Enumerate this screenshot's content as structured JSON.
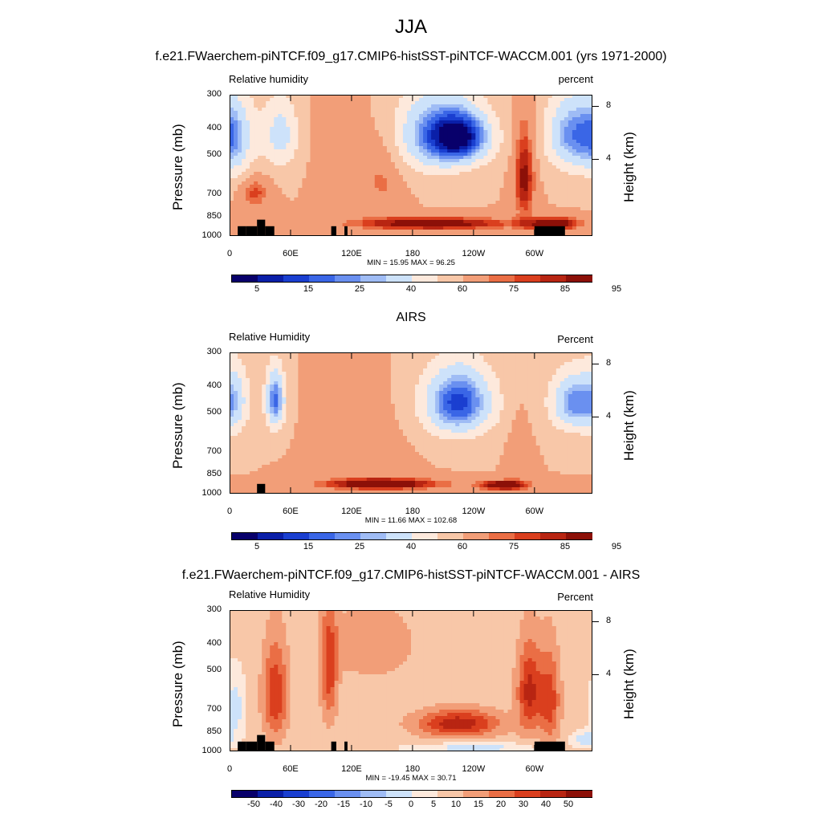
{
  "title": "JJA",
  "colors": {
    "abs_palette": [
      "#08006b",
      "#0a1fa8",
      "#1a3fd0",
      "#3a66e6",
      "#6a90f0",
      "#9fbcf5",
      "#cde2fa",
      "#fde9dc",
      "#f8c7a8",
      "#f29e78",
      "#ea6e45",
      "#da3f1e",
      "#b82512",
      "#8c1008"
    ],
    "diff_palette": [
      "#08006b",
      "#0a1fa8",
      "#1a3fd0",
      "#3a66e6",
      "#6a90f0",
      "#9fbcf5",
      "#cde2fa",
      "#fde9dc",
      "#f8c7a8",
      "#f29e78",
      "#ea6e45",
      "#da3f1e",
      "#b82512",
      "#8c1008"
    ],
    "topography": "#000000"
  },
  "shared_axes": {
    "x_tick_labels": [
      "0",
      "60E",
      "120E",
      "180",
      "120W",
      "60W"
    ],
    "y_left_label": "Pressure (mb)",
    "y_left_ticks": [
      "300",
      "400",
      "500",
      "700",
      "850",
      "1000"
    ],
    "y_right_label": "Height (km)",
    "y_right_ticks": [
      "8",
      "4"
    ]
  },
  "panels": [
    {
      "title": "f.e21.FWaerchem-piNTCF.f09_g17.CMIP6-histSST-piNTCF-WACCM.001 (yrs 1971-2000)",
      "left_string": "Relative humidity",
      "right_string": "percent",
      "stats": "MIN =  15.95  MAX =  96.25",
      "colorbar_labels": [
        "5",
        "15",
        "25",
        "40",
        "60",
        "75",
        "85",
        "95"
      ]
    },
    {
      "title": "AIRS",
      "left_string": "Relative Humidity",
      "right_string": "Percent",
      "stats": "MIN =  11.66  MAX = 102.68",
      "colorbar_labels": [
        "5",
        "15",
        "25",
        "40",
        "60",
        "75",
        "85",
        "95"
      ]
    },
    {
      "title": "f.e21.FWaerchem-piNTCF.f09_g17.CMIP6-histSST-piNTCF-WACCM.001 - AIRS",
      "left_string": "Relative Humidity",
      "right_string": "Percent",
      "stats": "MIN = -19.45  MAX =  30.71",
      "colorbar_labels": [
        "-50",
        "-40",
        "-30",
        "-20",
        "-15",
        "-10",
        "-5",
        "0",
        "5",
        "10",
        "15",
        "20",
        "30",
        "40",
        "50"
      ]
    }
  ],
  "chart_data": [
    {
      "type": "heatmap",
      "title": "f.e21.FWaerchem-piNTCF.f09_g17.CMIP6-histSST-piNTCF-WACCM.001 (yrs 1971-2000)",
      "variable": "Relative humidity",
      "units": "percent",
      "x": [
        "0",
        "60E",
        "120E",
        "180",
        "120W",
        "60W"
      ],
      "y_pressure_mb": [
        300,
        400,
        500,
        700,
        850,
        1000
      ],
      "y_height_km": [
        8,
        4
      ],
      "contour_levels": [
        5,
        10,
        15,
        20,
        25,
        30,
        40,
        50,
        60,
        70,
        75,
        80,
        85,
        90,
        95
      ],
      "min": 15.95,
      "max": 96.25,
      "blobs": [
        {
          "lon": 4,
          "p": 430,
          "value": 28,
          "dlon": 20,
          "dp": 160
        },
        {
          "lon": 50,
          "p": 420,
          "value": 35,
          "dlon": 18,
          "dp": 130
        },
        {
          "lon": 25,
          "p": 690,
          "value": 78,
          "dlon": 14,
          "dp": 90
        },
        {
          "lon": 105,
          "p": 450,
          "value": 68,
          "dlon": 20,
          "dp": 300
        },
        {
          "lon": 150,
          "p": 600,
          "value": 72,
          "dlon": 20,
          "dp": 220
        },
        {
          "lon": 200,
          "p": 420,
          "value": 25,
          "dlon": 40,
          "dp": 150
        },
        {
          "lon": 230,
          "p": 430,
          "value": 18,
          "dlon": 30,
          "dp": 100
        },
        {
          "lon": 290,
          "p": 600,
          "value": 88,
          "dlon": 10,
          "dp": 250
        },
        {
          "lon": 335,
          "p": 420,
          "value": 25,
          "dlon": 25,
          "dp": 140
        },
        {
          "lon": 200,
          "p": 900,
          "value": 92,
          "dlon": 80,
          "dp": 50
        },
        {
          "lon": 320,
          "p": 900,
          "value": 93,
          "dlon": 25,
          "dp": 50
        }
      ]
    },
    {
      "type": "heatmap",
      "title": "AIRS",
      "variable": "Relative Humidity",
      "units": "Percent",
      "x": [
        "0",
        "60E",
        "120E",
        "180",
        "120W",
        "60W"
      ],
      "y_pressure_mb": [
        300,
        400,
        500,
        700,
        850,
        1000
      ],
      "y_height_km": [
        8,
        4
      ],
      "contour_levels": [
        5,
        10,
        15,
        20,
        25,
        30,
        40,
        50,
        60,
        70,
        75,
        80,
        85,
        90,
        95
      ],
      "min": 11.66,
      "max": 102.68,
      "blobs": [
        {
          "lon": 45,
          "p": 450,
          "value": 18,
          "dlon": 10,
          "dp": 120
        },
        {
          "lon": 5,
          "p": 450,
          "value": 40,
          "dlon": 15,
          "dp": 150
        },
        {
          "lon": 225,
          "p": 460,
          "value": 12,
          "dlon": 35,
          "dp": 140
        },
        {
          "lon": 340,
          "p": 460,
          "value": 22,
          "dlon": 25,
          "dp": 120
        },
        {
          "lon": 130,
          "p": 650,
          "value": 65,
          "dlon": 40,
          "dp": 250
        },
        {
          "lon": 285,
          "p": 700,
          "value": 68,
          "dlon": 10,
          "dp": 220
        },
        {
          "lon": 150,
          "p": 920,
          "value": 96,
          "dlon": 60,
          "dp": 45
        },
        {
          "lon": 270,
          "p": 930,
          "value": 95,
          "dlon": 25,
          "dp": 40
        }
      ]
    },
    {
      "type": "heatmap",
      "title": "f.e21.FWaerchem-piNTCF.f09_g17.CMIP6-histSST-piNTCF-WACCM.001 - AIRS",
      "variable": "Relative Humidity",
      "units": "Percent",
      "x": [
        "0",
        "60E",
        "120E",
        "180",
        "120W",
        "60W"
      ],
      "y_pressure_mb": [
        300,
        400,
        500,
        700,
        850,
        1000
      ],
      "y_height_km": [
        8,
        4
      ],
      "contour_levels": [
        -50,
        -40,
        -30,
        -20,
        -15,
        -10,
        -5,
        0,
        5,
        10,
        15,
        20,
        30,
        40,
        50
      ],
      "min": -19.45,
      "max": 30.71,
      "blobs": [
        {
          "lon": 45,
          "p": 620,
          "value": 20,
          "dlon": 12,
          "dp": 250
        },
        {
          "lon": 98,
          "p": 500,
          "value": 18,
          "dlon": 8,
          "dp": 250
        },
        {
          "lon": 225,
          "p": 790,
          "value": 24,
          "dlon": 40,
          "dp": 90
        },
        {
          "lon": 295,
          "p": 600,
          "value": 22,
          "dlon": 12,
          "dp": 220
        },
        {
          "lon": 315,
          "p": 650,
          "value": 18,
          "dlon": 10,
          "dp": 250
        },
        {
          "lon": 140,
          "p": 400,
          "value": 10,
          "dlon": 40,
          "dp": 120
        },
        {
          "lon": 5,
          "p": 700,
          "value": -8,
          "dlon": 10,
          "dp": 200
        },
        {
          "lon": 240,
          "p": 970,
          "value": -8,
          "dlon": 60,
          "dp": 40
        },
        {
          "lon": 350,
          "p": 900,
          "value": -9,
          "dlon": 12,
          "dp": 60
        }
      ]
    }
  ],
  "topography_blocks_lon": [
    {
      "lon0": 8,
      "lon1": 16,
      "p_top": 920
    },
    {
      "lon0": 16,
      "lon1": 27,
      "p_top": 920
    },
    {
      "lon0": 27,
      "lon1": 35,
      "p_top": 870
    },
    {
      "lon0": 35,
      "lon1": 44,
      "p_top": 920
    },
    {
      "lon0": 100,
      "lon1": 105,
      "p_top": 920
    },
    {
      "lon0": 113,
      "lon1": 116,
      "p_top": 920
    },
    {
      "lon0": 300,
      "lon1": 330,
      "p_top": 920
    }
  ]
}
